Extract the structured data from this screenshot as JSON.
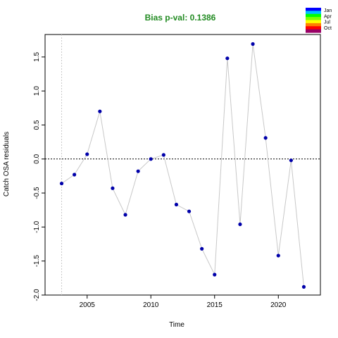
{
  "chart_data": {
    "type": "line",
    "title": "Bias p-val: 0.1386",
    "title_color": "#228b22",
    "xlabel": "Time",
    "ylabel": "Catch OSA residuals",
    "xlim": [
      2001.7,
      2023.3
    ],
    "ylim": [
      -2.0,
      1.83
    ],
    "x_ticks": [
      2005,
      2010,
      2015,
      2020
    ],
    "x_tick_labels": [
      "2005",
      "2010",
      "2015",
      "2020"
    ],
    "y_ticks": [
      -2.0,
      -1.5,
      -1.0,
      -0.5,
      0.0,
      0.5,
      1.0,
      1.5
    ],
    "y_tick_labels": [
      "-2.0",
      "-1.5",
      "-1.0",
      "-0.5",
      "0.0",
      "0.5",
      "1.0",
      "1.5"
    ],
    "reference_hline": 0.0,
    "reference_vline": 2003,
    "series": [
      {
        "x": [
          2003,
          2004,
          2005,
          2006,
          2007,
          2008,
          2009,
          2010,
          2011,
          2012,
          2013,
          2014,
          2015,
          2016,
          2017,
          2018,
          2019,
          2020,
          2021,
          2022
        ],
        "values": [
          -0.36,
          -0.23,
          0.07,
          0.7,
          -0.43,
          -0.82,
          -0.18,
          0.0,
          0.06,
          -0.67,
          -0.77,
          -1.32,
          -1.7,
          1.48,
          -0.96,
          1.69,
          0.31,
          -1.42,
          -0.02,
          -1.88
        ],
        "point_color": "#0000aa",
        "line_color": "#c8c8c8"
      }
    ],
    "legend": {
      "position": "top-right",
      "entries": [
        "Jan",
        "Apr",
        "Jul",
        "Oct"
      ],
      "gradient_colors": [
        "#0000ff",
        "#00bfff",
        "#00ff00",
        "#7fff00",
        "#ffff00",
        "#ff7f00",
        "#ff0000",
        "#990066"
      ]
    }
  }
}
